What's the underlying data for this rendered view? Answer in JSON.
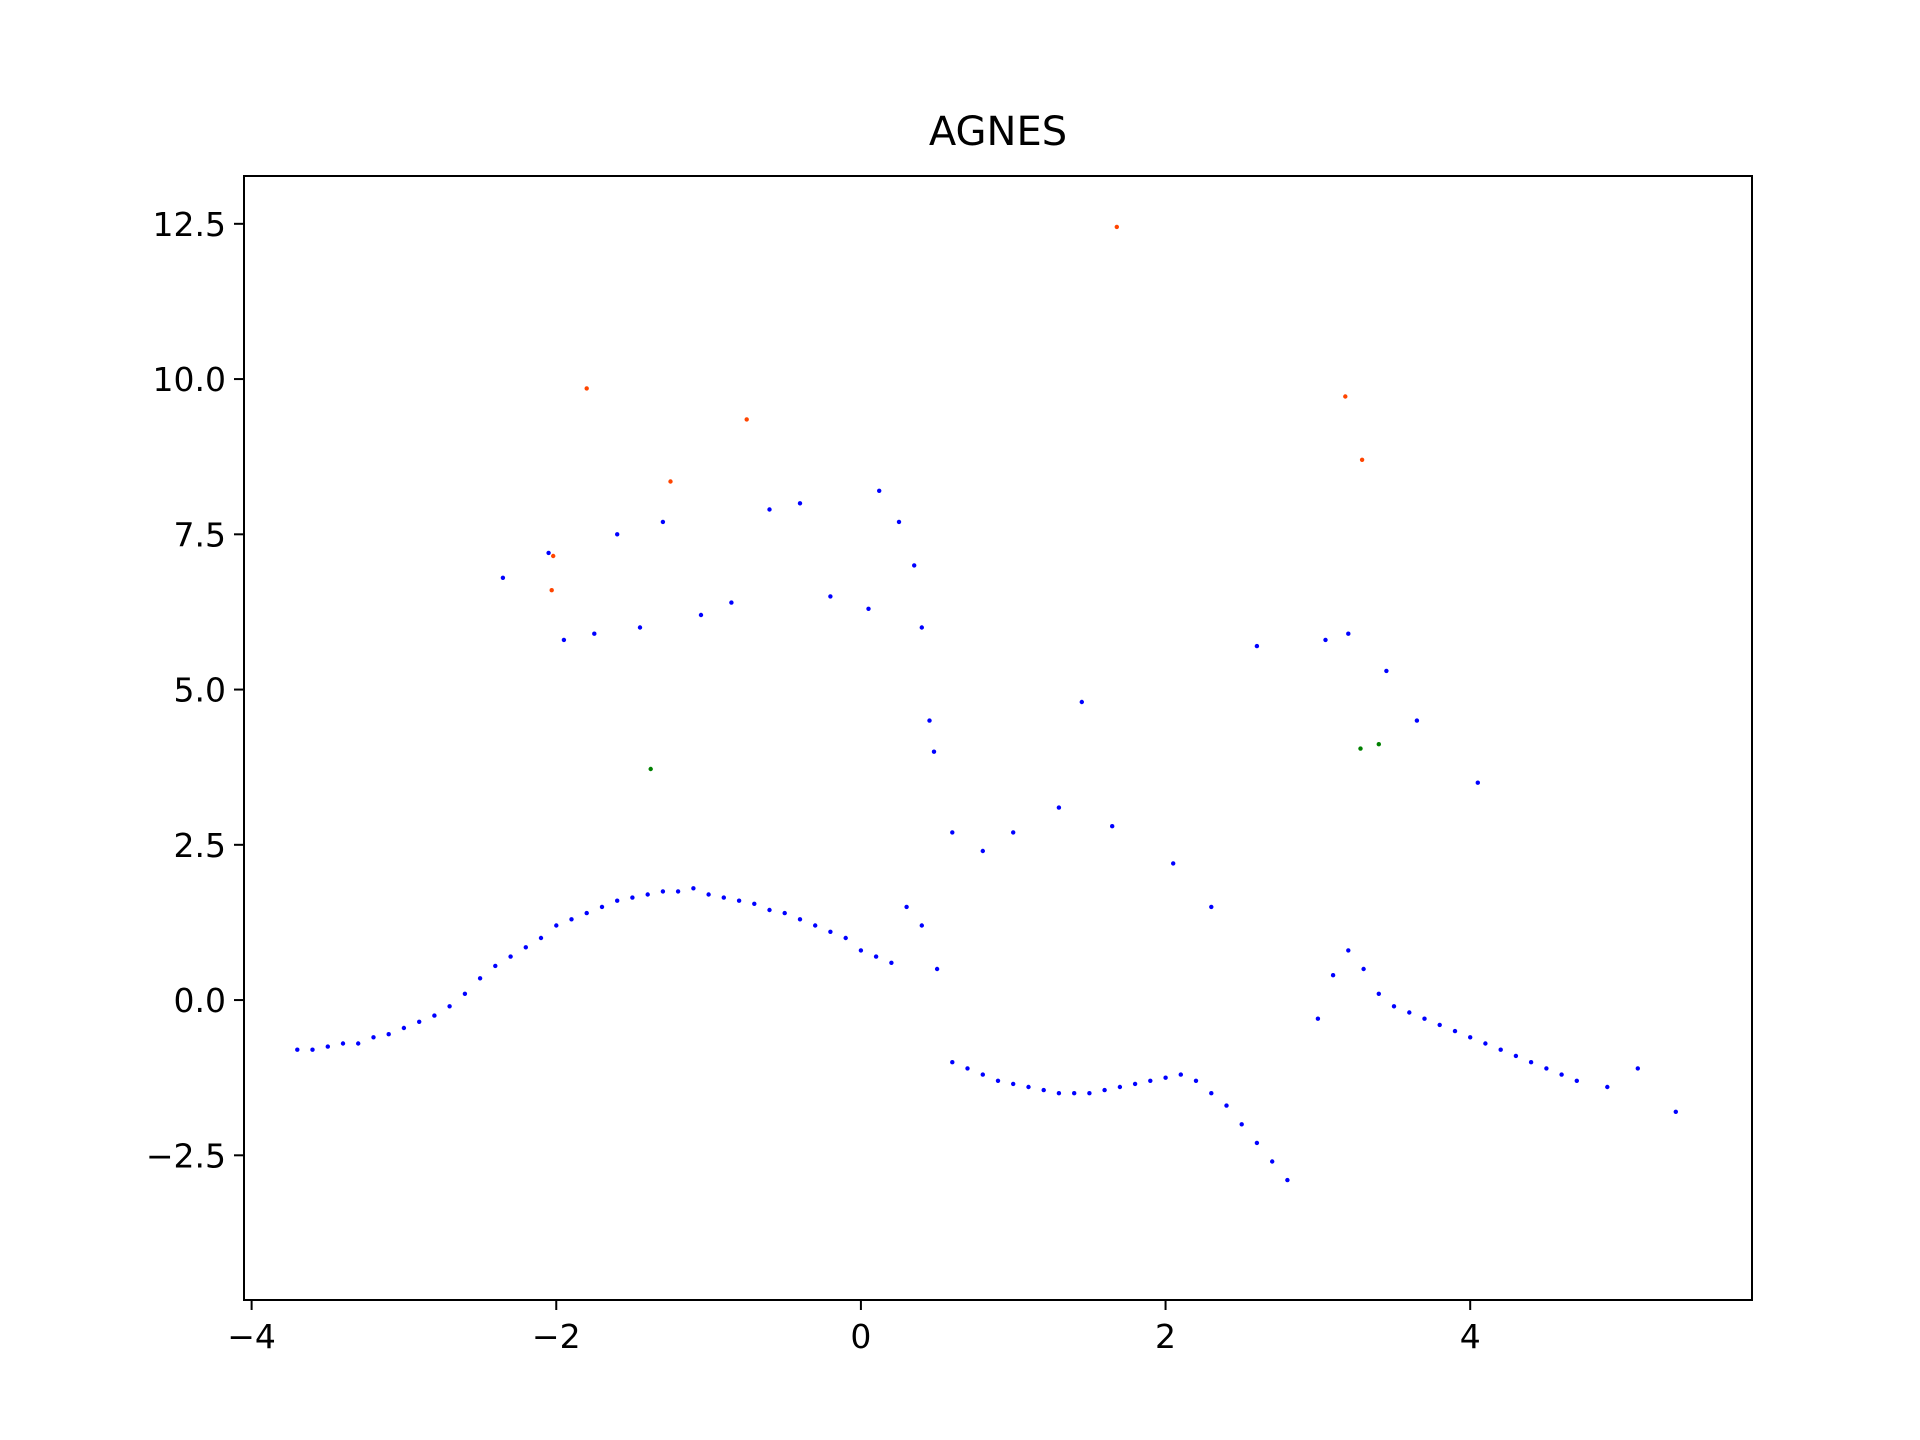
{
  "chart_data": {
    "type": "scatter",
    "title": "AGNES",
    "xlabel": "",
    "ylabel": "",
    "xlim": [
      -4.05,
      5.85
    ],
    "ylim": [
      -4.83,
      13.27
    ],
    "x_ticks": [
      -4,
      -2,
      0,
      2,
      4
    ],
    "y_ticks": [
      -2.5,
      0.0,
      2.5,
      5.0,
      7.5,
      10.0,
      12.5
    ],
    "x_tick_labels": [
      "−4",
      "−2",
      "0",
      "2",
      "4"
    ],
    "y_tick_labels": [
      "−2.5",
      "0.0",
      "2.5",
      "5.0",
      "7.5",
      "10.0",
      "12.5"
    ],
    "grid": false,
    "legend": "none",
    "colors": {
      "cluster_blue": "#0000ff",
      "cluster_orange": "#ff4500",
      "cluster_green": "#008000"
    },
    "series": [
      {
        "color": "#ff4500",
        "x": [
          1.68,
          -1.8,
          -0.75,
          3.18,
          3.29,
          -1.25,
          -2.02,
          -2.03
        ],
        "y": [
          12.45,
          9.85,
          9.35,
          9.72,
          8.7,
          8.35,
          7.15,
          6.6
        ]
      },
      {
        "color": "#008000",
        "x": [
          -1.38,
          3.28,
          3.4
        ],
        "y": [
          3.72,
          4.05,
          4.12
        ]
      },
      {
        "color": "#0000ff",
        "x": [
          -3.7,
          -3.6,
          -3.5,
          -3.4,
          -3.3,
          -3.2,
          -3.1,
          -3.0,
          -2.9,
          -2.8,
          -2.7,
          -2.6,
          -2.5,
          -2.4,
          -2.3,
          -2.2,
          -2.1,
          -2.0,
          -1.9,
          -1.8,
          -1.7,
          -1.6,
          -1.5,
          -1.4,
          -1.3,
          -1.2,
          -1.1,
          -1.0,
          -0.9,
          -0.8,
          -0.7,
          -0.6,
          -0.5,
          -0.4,
          -0.3,
          -0.2,
          -0.1,
          0.0,
          0.1,
          0.2,
          0.3,
          0.4,
          0.5,
          0.6,
          0.7,
          0.8,
          0.9,
          1.0,
          1.1,
          1.2,
          1.3,
          1.4,
          1.5,
          1.6,
          1.7,
          1.8,
          1.9,
          2.0,
          2.1,
          2.2,
          2.3,
          2.4,
          2.5,
          2.6,
          2.7,
          2.8,
          3.0,
          3.1,
          3.2,
          3.3,
          3.4,
          3.5,
          3.6,
          3.7,
          3.8,
          3.9,
          4.0,
          4.1,
          4.2,
          4.3,
          4.4,
          4.5,
          4.6,
          4.7,
          4.9,
          5.1,
          5.35,
          -2.35,
          -2.05,
          -1.95,
          -1.75,
          -1.6,
          -1.45,
          -1.3,
          -1.05,
          -0.85,
          -0.6,
          -0.4,
          -0.2,
          0.05,
          0.12,
          0.25,
          0.35,
          0.4,
          0.45,
          0.48,
          0.6,
          0.8,
          1.0,
          1.3,
          1.45,
          1.65,
          2.05,
          2.3,
          2.6,
          3.05,
          3.2,
          3.45,
          3.65,
          4.05
        ],
        "y": [
          -0.8,
          -0.8,
          -0.75,
          -0.7,
          -0.7,
          -0.6,
          -0.55,
          -0.45,
          -0.35,
          -0.25,
          -0.1,
          0.1,
          0.35,
          0.55,
          0.7,
          0.85,
          1.0,
          1.2,
          1.3,
          1.4,
          1.5,
          1.6,
          1.65,
          1.7,
          1.75,
          1.75,
          1.8,
          1.7,
          1.65,
          1.6,
          1.55,
          1.45,
          1.4,
          1.3,
          1.2,
          1.1,
          1.0,
          0.8,
          0.7,
          0.6,
          1.5,
          1.2,
          0.5,
          -1.0,
          -1.1,
          -1.2,
          -1.3,
          -1.35,
          -1.4,
          -1.45,
          -1.5,
          -1.5,
          -1.5,
          -1.45,
          -1.4,
          -1.35,
          -1.3,
          -1.25,
          -1.2,
          -1.3,
          -1.5,
          -1.7,
          -2.0,
          -2.3,
          -2.6,
          -2.9,
          -0.3,
          0.4,
          0.8,
          0.5,
          0.1,
          -0.1,
          -0.2,
          -0.3,
          -0.4,
          -0.5,
          -0.6,
          -0.7,
          -0.8,
          -0.9,
          -1.0,
          -1.1,
          -1.2,
          -1.3,
          -1.4,
          -1.1,
          -1.8,
          6.8,
          7.2,
          5.8,
          5.9,
          7.5,
          6.0,
          7.7,
          6.2,
          6.4,
          7.9,
          8.0,
          6.5,
          6.3,
          8.2,
          7.7,
          7.0,
          6.0,
          4.5,
          4.0,
          2.7,
          2.4,
          2.7,
          3.1,
          4.8,
          2.8,
          2.2,
          1.5,
          5.7,
          5.8,
          5.9,
          5.3,
          4.5,
          3.5
        ]
      }
    ]
  }
}
